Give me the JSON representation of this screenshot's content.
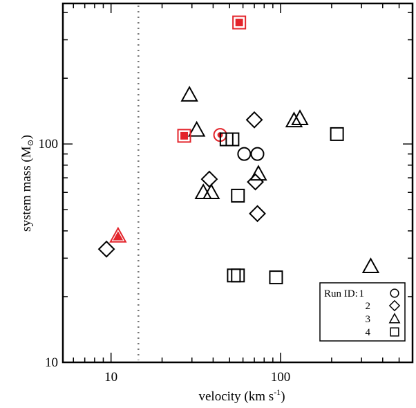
{
  "chart_data": {
    "type": "scatter",
    "xlabel_main": "velocity (km s",
    "xlabel_sup": "-1",
    "xlabel_close": ")",
    "ylabel_main": "system mass (M",
    "ylabel_sub": "⊙",
    "ylabel_close": ")",
    "xscale": "log",
    "yscale": "log",
    "xlim": [
      5.2,
      600
    ],
    "ylim": [
      10,
      440
    ],
    "xticks": [
      10,
      100
    ],
    "xtick_labels": [
      "10",
      "100"
    ],
    "yticks": [
      10,
      100
    ],
    "ytick_labels": [
      "10",
      "100"
    ],
    "vline": 14.5,
    "legend": {
      "title": "Run ID:",
      "entries": [
        {
          "label": "1",
          "marker": "circle"
        },
        {
          "label": "2",
          "marker": "diamond"
        },
        {
          "label": "3",
          "marker": "triangle"
        },
        {
          "label": "4",
          "marker": "square"
        }
      ],
      "placement": "bottom-right"
    },
    "highlight_color": "#e3242b",
    "series": [
      {
        "marker": "circle",
        "points": [
          [
            44,
            110
          ],
          [
            61,
            90
          ],
          [
            73,
            90
          ]
        ]
      },
      {
        "marker": "diamond",
        "points": [
          [
            9.4,
            33
          ],
          [
            38,
            69
          ],
          [
            70,
            129
          ],
          [
            71,
            67
          ],
          [
            73,
            48
          ]
        ]
      },
      {
        "marker": "triangle",
        "points": [
          [
            11,
            38
          ],
          [
            29,
            168
          ],
          [
            32,
            116
          ],
          [
            35,
            60
          ],
          [
            39,
            60
          ],
          [
            74,
            73
          ],
          [
            120,
            128
          ],
          [
            130,
            131
          ],
          [
            340,
            27.5
          ]
        ]
      },
      {
        "marker": "square",
        "points": [
          [
            27,
            109
          ],
          [
            48,
            105
          ],
          [
            52,
            105
          ],
          [
            53,
            25
          ],
          [
            56,
            25
          ],
          [
            56,
            58
          ],
          [
            57,
            360
          ],
          [
            94,
            24.5
          ],
          [
            215,
            111
          ]
        ]
      }
    ],
    "highlighted_points": [
      {
        "marker": "circle",
        "x": 44,
        "y": 110
      },
      {
        "marker": "triangle",
        "x": 11,
        "y": 38
      },
      {
        "marker": "square",
        "x": 27,
        "y": 109
      },
      {
        "marker": "square",
        "x": 57,
        "y": 360
      }
    ]
  }
}
